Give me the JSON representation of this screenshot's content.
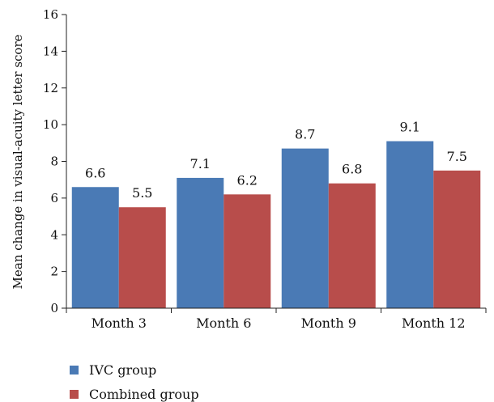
{
  "chart_data": {
    "type": "bar",
    "title": "",
    "xlabel": "",
    "ylabel": "Mean change in visual-acuity letter score",
    "ylim": [
      0,
      16
    ],
    "yticks": [
      0,
      2,
      4,
      6,
      8,
      10,
      12,
      14,
      16
    ],
    "categories": [
      "Month 3",
      "Month 6",
      "Month 9",
      "Month 12"
    ],
    "series": [
      {
        "name": "IVC group",
        "color": "#4a7ab5",
        "values": [
          6.6,
          7.1,
          8.7,
          9.1
        ]
      },
      {
        "name": "Combined group",
        "color": "#b84d4b",
        "values": [
          5.5,
          6.2,
          6.8,
          7.5
        ]
      }
    ],
    "legend_position": "bottom-left",
    "grid": false
  }
}
